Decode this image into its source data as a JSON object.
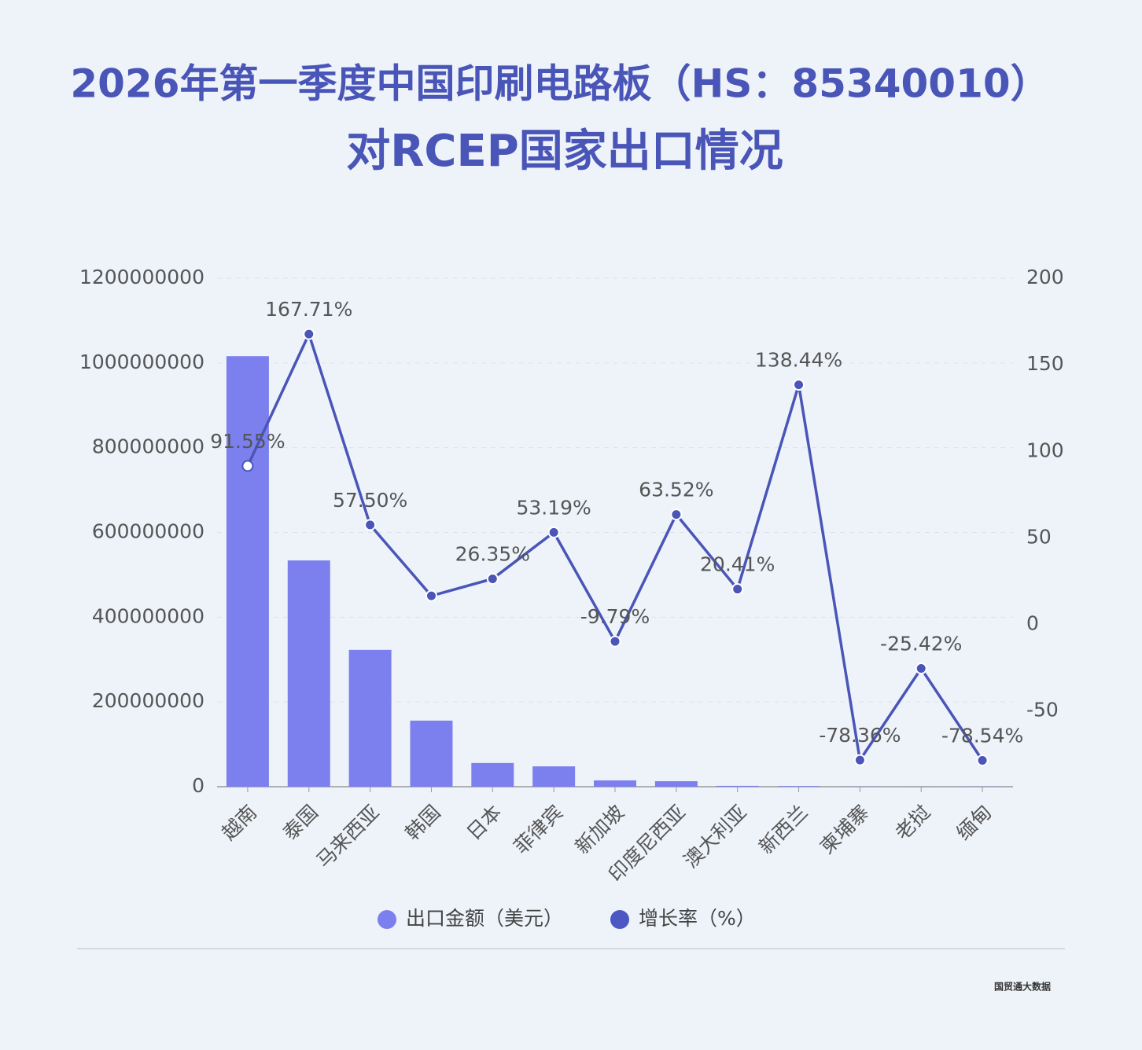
{
  "chart_data": {
    "type": "bar_line",
    "title": [
      "2026年第一季度中国印刷电路板（HS：85340010）",
      "对RCEP国家出口情况"
    ],
    "categories": [
      "越南",
      "泰国",
      "马来西亚",
      "韩国",
      "日本",
      "菲律宾",
      "新加坡",
      "印度尼西亚",
      "澳大利亚",
      "新西兰",
      "柬埔寨",
      "老挝",
      "缅甸"
    ],
    "series": [
      {
        "name": "出口金额（美元）",
        "color": "#7b80ee",
        "type": "bar",
        "values": [
          1016000000,
          534000000,
          323000000,
          156000000,
          56000000,
          48000000,
          15000000,
          13000000,
          2000000,
          1500000,
          300000,
          200000,
          500000
        ]
      },
      {
        "name": "增长率（%）",
        "color": "#4a55b8",
        "type": "line",
        "axis": "y2",
        "values": [
          91.55,
          167.71,
          57.5,
          16.5,
          26.35,
          53.19,
          -9.79,
          63.52,
          20.41,
          138.44,
          -78.36,
          -25.42,
          -78.54
        ],
        "value_labels": [
          "91.55%",
          "167.71%",
          "57.50%",
          null,
          "26.35%",
          "53.19%",
          "-9.79%",
          "63.52%",
          "20.41%",
          "138.44%",
          "-78.36%",
          "-25.42%",
          "-78.54%"
        ]
      }
    ],
    "ylim": [
      0,
      1200000000
    ],
    "yticks": [
      0,
      200000000,
      400000000,
      600000000,
      800000000,
      1000000000,
      1200000000
    ],
    "y2lim": [
      -93.75,
      200
    ],
    "y2ticks": [
      -50,
      0,
      50,
      100,
      150,
      200
    ],
    "grid": true,
    "legend": "bottom",
    "source": "国贸通大数据"
  }
}
